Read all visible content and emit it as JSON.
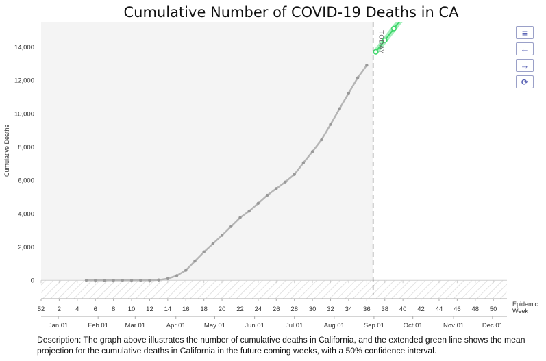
{
  "chart_data": {
    "type": "line",
    "title": "Cumulative Number of COVID-19 Deaths in CA",
    "ylabel": "Cumulative Deaths",
    "xlabel": "Epidemic Week",
    "ylim": [
      -1100,
      15500
    ],
    "xlim": [
      52,
      51.5
    ],
    "y_ticks": [
      0,
      2000,
      4000,
      6000,
      8000,
      10000,
      12000,
      14000
    ],
    "y_tick_labels": [
      "0",
      "2,000",
      "4,000",
      "6,000",
      "8,000",
      "10,000",
      "12,000",
      "14,000"
    ],
    "week_ticks": [
      "52",
      "2",
      "4",
      "6",
      "8",
      "10",
      "12",
      "14",
      "16",
      "18",
      "20",
      "22",
      "24",
      "26",
      "28",
      "30",
      "32",
      "34",
      "36",
      "38",
      "40",
      "42",
      "44",
      "46",
      "48",
      "50"
    ],
    "month_ticks": [
      {
        "label": "Jan 01",
        "week": 1.9
      },
      {
        "label": "Feb 01",
        "week": 6.3
      },
      {
        "label": "Mar 01",
        "week": 10.4
      },
      {
        "label": "Apr 01",
        "week": 14.9
      },
      {
        "label": "May 01",
        "week": 19.2
      },
      {
        "label": "Jun 01",
        "week": 23.6
      },
      {
        "label": "Jul 01",
        "week": 28.0
      },
      {
        "label": "Aug 01",
        "week": 32.4
      },
      {
        "label": "Sep 01",
        "week": 36.8
      },
      {
        "label": "Oct 01",
        "week": 41.1
      },
      {
        "label": "Nov 01",
        "week": 45.6
      },
      {
        "label": "Dec 01",
        "week": 49.9
      }
    ],
    "today_week": 36.7,
    "today_label": "TODAY",
    "grid": false,
    "series": [
      {
        "color": "#b5b5b5",
        "x": [
          5,
          6,
          7,
          8,
          9,
          10,
          11,
          12,
          13,
          14,
          15,
          16,
          17,
          18,
          19,
          20,
          21,
          22,
          23,
          24,
          25,
          26,
          27,
          28,
          29,
          30,
          31,
          32,
          33,
          34,
          35,
          36
        ],
        "y": [
          0,
          0,
          0,
          0,
          0,
          0,
          0,
          0,
          20,
          100,
          280,
          600,
          1150,
          1700,
          2200,
          2700,
          3230,
          3760,
          4150,
          4620,
          5100,
          5500,
          5900,
          6350,
          7050,
          7720,
          8430,
          9350,
          10300,
          11230,
          12150,
          12900
        ]
      },
      {
        "color": "#3ed66a",
        "x": [
          37,
          38,
          39,
          40,
          41
        ],
        "y": [
          13700,
          14400,
          15100,
          15800,
          16500
        ]
      }
    ]
  },
  "description": "Description: The graph above illustrates the number of cumulative deaths in California, and the extended green line shows the mean projection for the cumulative deaths  in California in the future coming weeks, with a 50% confidence interval.",
  "controls": [
    {
      "name": "menu-icon",
      "glyph": "≡"
    },
    {
      "name": "arrow-left-icon",
      "glyph": "←"
    },
    {
      "name": "arrow-right-icon",
      "glyph": "→"
    },
    {
      "name": "refresh-icon",
      "glyph": "⟳"
    }
  ]
}
